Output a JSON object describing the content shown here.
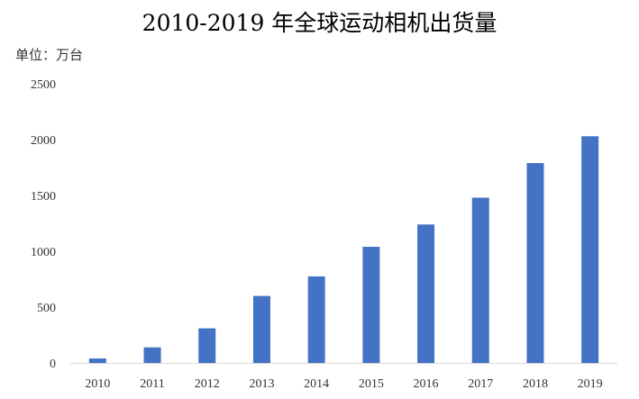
{
  "chart_data": {
    "type": "bar",
    "title": "2010-2019 年全球运动相机出货量",
    "unit_label": "单位：万台",
    "categories": [
      "2010",
      "2011",
      "2012",
      "2013",
      "2014",
      "2015",
      "2016",
      "2017",
      "2018",
      "2019"
    ],
    "values": [
      40,
      140,
      310,
      600,
      775,
      1040,
      1240,
      1480,
      1790,
      2030
    ],
    "ylim": [
      0,
      2500
    ],
    "yticks": [
      "0",
      "500",
      "1000",
      "1500",
      "2000",
      "2500"
    ],
    "grid": false,
    "bar_color": "#4472C4",
    "axis_color": "#D9D9D9",
    "text_color": "#333333"
  }
}
